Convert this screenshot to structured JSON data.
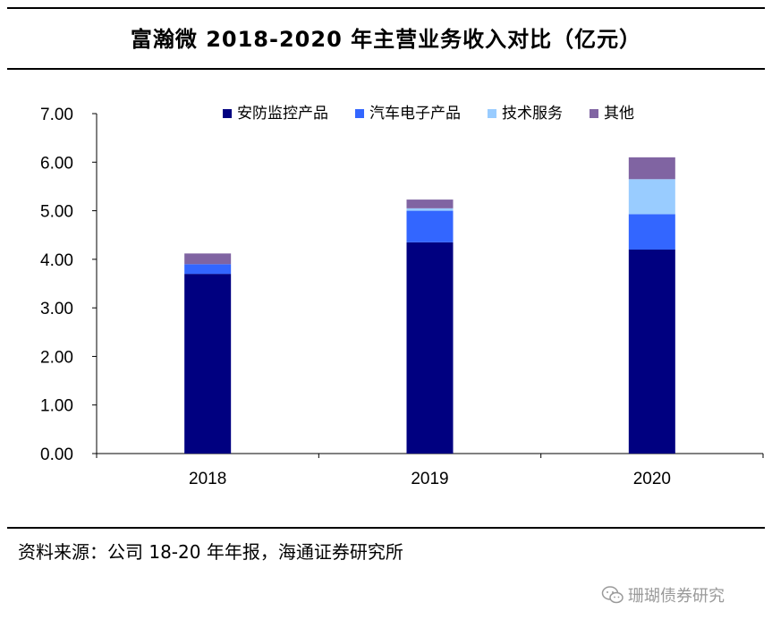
{
  "title": "富瀚微 2018-2020 年主营业务收入对比（亿元）",
  "source": "资料来源：公司 18-20 年年报，海通证券研究所",
  "watermark": "珊瑚债券研究",
  "chart_data": {
    "type": "bar",
    "stacked": true,
    "categories": [
      "2018",
      "2019",
      "2020"
    ],
    "series": [
      {
        "name": "安防监控产品",
        "color": "#000080",
        "values": [
          3.7,
          4.35,
          4.2
        ]
      },
      {
        "name": "汽车电子产品",
        "color": "#3366ff",
        "values": [
          0.2,
          0.65,
          0.73
        ]
      },
      {
        "name": "技术服务",
        "color": "#99ccff",
        "values": [
          0.0,
          0.05,
          0.72
        ]
      },
      {
        "name": "其他",
        "color": "#8064a2",
        "values": [
          0.22,
          0.18,
          0.45
        ]
      }
    ],
    "ylim": [
      0,
      7
    ],
    "yticks": [
      "0.00",
      "1.00",
      "2.00",
      "3.00",
      "4.00",
      "5.00",
      "6.00",
      "7.00"
    ],
    "legend_position": "top"
  }
}
